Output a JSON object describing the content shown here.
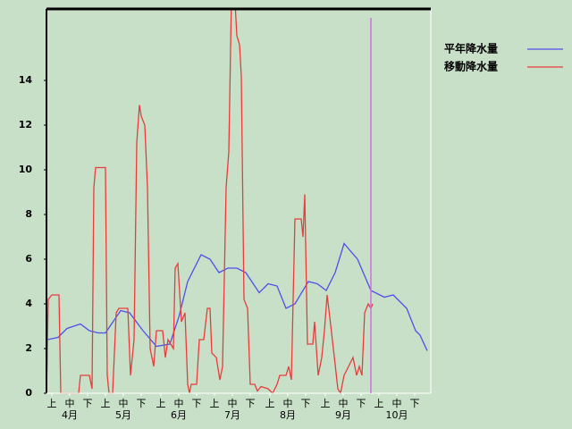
{
  "chart_data": {
    "type": "line",
    "xlim": [
      0,
      215
    ],
    "ylim": [
      0,
      17.2
    ],
    "yticks": [
      0,
      2,
      4,
      6,
      8,
      10,
      12,
      14
    ],
    "xticks": [
      {
        "value": 3,
        "label": "上"
      },
      {
        "value": 13,
        "label": "中"
      },
      {
        "value": 23,
        "label": "下"
      },
      {
        "value": 33,
        "label": "上"
      },
      {
        "value": 43,
        "label": "中"
      },
      {
        "value": 53,
        "label": "下"
      },
      {
        "value": 64,
        "label": "上"
      },
      {
        "value": 74,
        "label": "中"
      },
      {
        "value": 84,
        "label": "下"
      },
      {
        "value": 94,
        "label": "上"
      },
      {
        "value": 104,
        "label": "中"
      },
      {
        "value": 114,
        "label": "下"
      },
      {
        "value": 125,
        "label": "上"
      },
      {
        "value": 135,
        "label": "中"
      },
      {
        "value": 145,
        "label": "下"
      },
      {
        "value": 156,
        "label": "上"
      },
      {
        "value": 166,
        "label": "中"
      },
      {
        "value": 176,
        "label": "下"
      },
      {
        "value": 186,
        "label": "上"
      },
      {
        "value": 196,
        "label": "中"
      },
      {
        "value": 206,
        "label": "下"
      }
    ],
    "month_ticks": [
      {
        "value": 13,
        "label": "4月"
      },
      {
        "value": 43,
        "label": "5月"
      },
      {
        "value": 74,
        "label": "6月"
      },
      {
        "value": 104,
        "label": "7月"
      },
      {
        "value": 135,
        "label": "8月"
      },
      {
        "value": 166,
        "label": "9月"
      },
      {
        "value": 196,
        "label": "10月"
      }
    ],
    "marker_x": 181.5,
    "series": [
      {
        "name": "平年降水量",
        "color": "#5050e8",
        "x": [
          0,
          0.5,
          6.5,
          11.5,
          19,
          24,
          29,
          33,
          41.5,
          46.5,
          54,
          61.5,
          69,
          74,
          79,
          86.5,
          91.5,
          96.5,
          101.5,
          106.5,
          111.5,
          119,
          124,
          129,
          134,
          139,
          146.5,
          151.5,
          156.5,
          161.5,
          166.5,
          174,
          181.5,
          189,
          194,
          201.5,
          206.5,
          209,
          213
        ],
        "values": [
          0,
          2.4,
          2.5,
          2.9,
          3.1,
          2.8,
          2.7,
          2.7,
          3.7,
          3.6,
          2.8,
          2.1,
          2.2,
          3.4,
          5,
          6.2,
          6,
          5.4,
          5.6,
          5.6,
          5.4,
          4.5,
          4.9,
          4.8,
          3.8,
          4,
          5,
          4.9,
          4.6,
          5.4,
          6.7,
          6,
          4.6,
          4.3,
          4.4,
          3.8,
          2.8,
          2.6,
          1.9
        ]
      },
      {
        "name": "移動降水量",
        "color": "#e83c3c",
        "x": [
          0,
          1,
          3,
          7,
          8,
          18,
          19,
          24,
          25.5,
          26.5,
          27.5,
          33,
          34,
          35,
          37,
          39,
          40.5,
          45.5,
          47,
          49,
          50.5,
          52,
          53,
          55,
          56.5,
          58,
          60,
          61.5,
          65,
          66.5,
          68,
          71,
          72,
          73.5,
          75.5,
          77.5,
          79,
          80,
          81,
          84,
          85.5,
          88,
          90,
          91.5,
          92.5,
          95,
          97,
          98.5,
          100.5,
          102,
          103.5,
          105.5,
          106.5,
          108,
          109,
          110.5,
          112.5,
          114,
          116.5,
          118,
          120,
          124,
          126.5,
          129,
          130.5,
          134,
          135.5,
          137,
          139,
          142.5,
          143.5,
          144.5,
          146,
          149,
          150,
          152,
          154,
          155.5,
          157,
          158.5,
          160.5,
          163,
          164.5,
          166.5,
          169,
          171.5,
          173.5,
          175,
          176.5,
          178,
          180,
          181.5,
          182.5
        ],
        "values": [
          0,
          4.2,
          4.4,
          4.4,
          0,
          0,
          0.8,
          0.8,
          0.2,
          9.2,
          10.1,
          10.1,
          0.8,
          0,
          0,
          3.6,
          3.8,
          3.8,
          0.8,
          2.4,
          11.2,
          12.9,
          12.4,
          12,
          9.2,
          2,
          1.2,
          2.8,
          2.8,
          1.6,
          2.4,
          2,
          5.6,
          5.8,
          3.2,
          3.6,
          0.4,
          0,
          0.4,
          0.4,
          2.4,
          2.4,
          3.8,
          3.8,
          1.8,
          1.6,
          0.6,
          1.2,
          9.2,
          10.8,
          17.8,
          17.5,
          16,
          15.6,
          14.2,
          4.2,
          3.8,
          0.4,
          0.4,
          0.1,
          0.3,
          0.2,
          0,
          0.4,
          0.8,
          0.8,
          1.2,
          0.6,
          7.8,
          7.8,
          7,
          8.9,
          2.2,
          2.2,
          3.2,
          0.8,
          1.6,
          2.8,
          4.4,
          3.4,
          2,
          0.2,
          0,
          0.8,
          1.2,
          1.6,
          0.8,
          1.2,
          0.8,
          3.6,
          4,
          3.8,
          4
        ]
      }
    ]
  }
}
